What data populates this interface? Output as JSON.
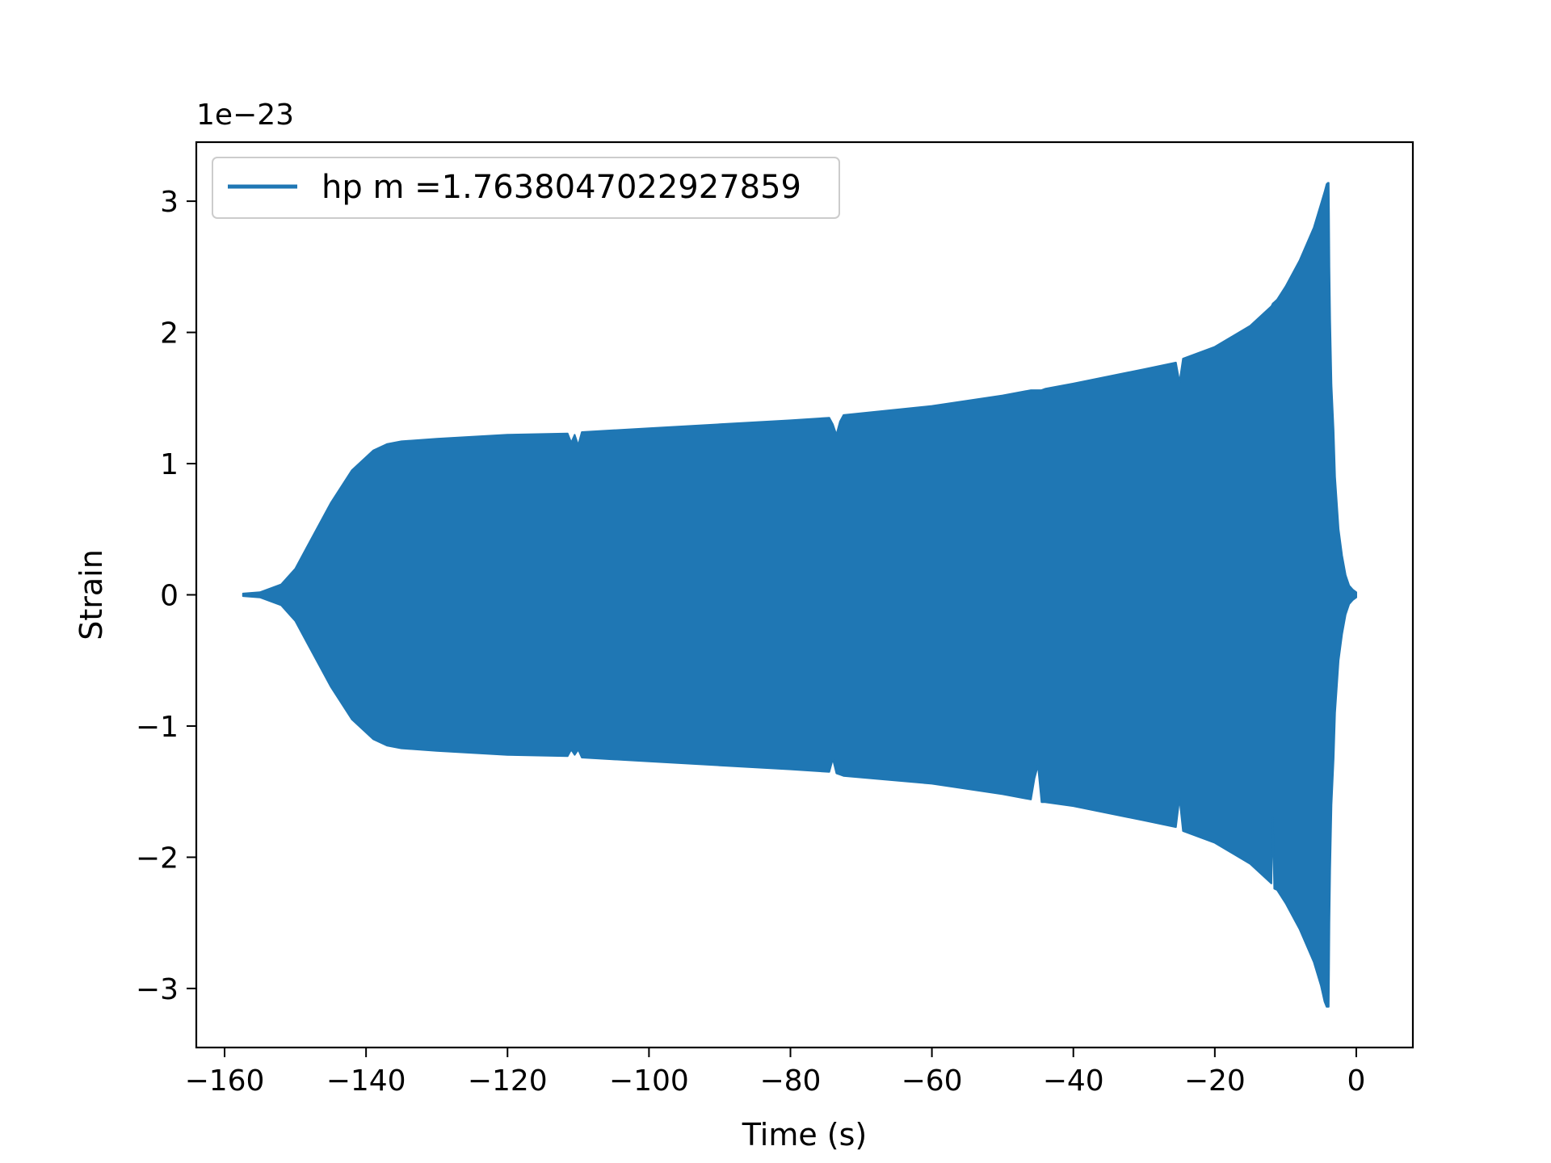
{
  "chart_data": {
    "type": "line",
    "title": "",
    "xlabel": "Time (s)",
    "ylabel": "Strain",
    "y_offset_label": "1e−23",
    "xlim": [
      -164,
      8
    ],
    "ylim": [
      -3.45,
      3.45
    ],
    "x_ticks": [
      -160,
      -140,
      -120,
      -100,
      -80,
      -60,
      -40,
      -20,
      0
    ],
    "x_tick_labels": [
      "−160",
      "−140",
      "−120",
      "−100",
      "−80",
      "−60",
      "−40",
      "−20",
      "0"
    ],
    "y_ticks": [
      -3,
      -2,
      -1,
      0,
      1,
      2,
      3
    ],
    "y_tick_labels": [
      "−3",
      "−2",
      "−1",
      "0",
      "1",
      "2",
      "3"
    ],
    "grid": false,
    "legend_position": "upper-left",
    "series": [
      {
        "name": "hp m =1.7638047022927859",
        "color": "#1f77b4",
        "render": "dense-oscillation-envelope",
        "envelope": {
          "t": [
            -157.4,
            -155,
            -152,
            -150,
            -148,
            -145,
            -142,
            -139,
            -137,
            -135,
            -130,
            -120,
            -111.5,
            -111,
            -110.5,
            -110,
            -109.5,
            -100,
            -90,
            -80,
            -74.5,
            -74,
            -73.5,
            -73,
            -72.5,
            -60,
            -50,
            -46,
            -45.5,
            -45,
            -44.5,
            -44,
            -40,
            -30,
            -25.5,
            -25,
            -24.5,
            -20,
            -15,
            -12,
            -11.8,
            -11.6,
            -11.2,
            -10,
            -8,
            -6,
            -5,
            -4.5,
            -4.2,
            -4,
            -3.9,
            -3.85,
            -3.8,
            -3.7,
            -3.5,
            -3.2,
            -3,
            -2.5,
            -2,
            -1.5,
            -1,
            -0.5,
            0
          ],
          "upper": [
            0.01,
            0.02,
            0.08,
            0.2,
            0.4,
            0.7,
            0.95,
            1.1,
            1.15,
            1.17,
            1.19,
            1.22,
            1.23,
            1.16,
            1.22,
            1.14,
            1.24,
            1.27,
            1.3,
            1.33,
            1.35,
            1.3,
            1.22,
            1.32,
            1.37,
            1.44,
            1.52,
            1.56,
            1.56,
            1.56,
            1.56,
            1.57,
            1.61,
            1.72,
            1.77,
            1.62,
            1.8,
            1.89,
            2.05,
            2.2,
            2.22,
            2.23,
            2.25,
            2.35,
            2.55,
            2.8,
            2.98,
            3.07,
            3.13,
            3.14,
            3.14,
            2.9,
            2.5,
            2.1,
            1.6,
            1.25,
            0.9,
            0.5,
            0.3,
            0.15,
            0.07,
            0.04,
            0.02
          ],
          "lower": [
            -0.01,
            -0.02,
            -0.08,
            -0.2,
            -0.4,
            -0.7,
            -0.95,
            -1.1,
            -1.15,
            -1.17,
            -1.19,
            -1.22,
            -1.23,
            -1.18,
            -1.22,
            -1.18,
            -1.24,
            -1.27,
            -1.3,
            -1.33,
            -1.35,
            -1.25,
            -1.36,
            -1.37,
            -1.38,
            -1.44,
            -1.52,
            -1.56,
            -1.4,
            -1.3,
            -1.58,
            -1.58,
            -1.61,
            -1.72,
            -1.77,
            -1.55,
            -1.8,
            -1.89,
            -2.05,
            -2.2,
            -1.7,
            -2.24,
            -2.25,
            -2.35,
            -2.55,
            -2.8,
            -2.98,
            -3.1,
            -3.14,
            -3.14,
            -3.14,
            -2.9,
            -2.5,
            -2.1,
            -1.6,
            -1.25,
            -0.9,
            -0.5,
            -0.3,
            -0.15,
            -0.07,
            -0.04,
            -0.02
          ]
        }
      }
    ]
  }
}
